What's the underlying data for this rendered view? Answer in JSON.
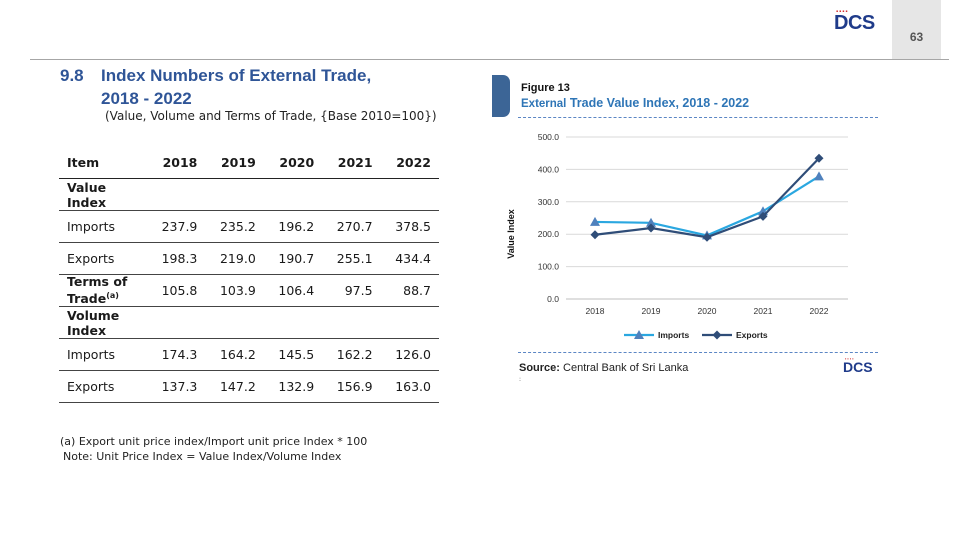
{
  "header": {
    "page_number": "63",
    "logo_text": "DCS",
    "logo_dots": "▪▪▪▪"
  },
  "section": {
    "number": "9.8",
    "title_line1": "Index Numbers of External Trade,",
    "title_line2": "2018 - 2022",
    "subtitle": "(Value, Volume and Terms of Trade, {Base 2010=100})"
  },
  "table": {
    "headers": [
      "Item",
      "2018",
      "2019",
      "2020",
      "2021",
      "2022"
    ],
    "value_group": "Value Index",
    "value_rows": [
      {
        "label": "Imports",
        "values": [
          "237.9",
          "235.2",
          "196.2",
          "270.7",
          "378.5"
        ]
      },
      {
        "label": "Exports",
        "values": [
          "198.3",
          "219.0",
          "190.7",
          "255.1",
          "434.4"
        ]
      }
    ],
    "tot_row": {
      "label": "Terms of Trade",
      "sup": "(a)",
      "values": [
        "105.8",
        "103.9",
        "106.4",
        "97.5",
        "88.7"
      ]
    },
    "volume_group": "Volume Index",
    "volume_rows": [
      {
        "label": "Imports",
        "values": [
          "174.3",
          "164.2",
          "145.5",
          "162.2",
          "126.0"
        ]
      },
      {
        "label": "Exports",
        "values": [
          "137.3",
          "147.2",
          "132.9",
          "156.9",
          "163.0"
        ]
      }
    ]
  },
  "notes": {
    "note_a": "(a)  Export unit price index/Import unit price Index * 100",
    "note_b": "Note: Unit Price Index = Value Index/Volume Index"
  },
  "figure": {
    "label": "Figure 13",
    "title_prefix": "External",
    "title_rest": " Trade Value Index, 2018 - 2022",
    "source_label": "Source:",
    "source_text": " Central Bank of Sri Lanka",
    "source_dot": ":"
  },
  "chart_data": {
    "type": "line",
    "x": [
      "2018",
      "2019",
      "2020",
      "2021",
      "2022"
    ],
    "ylabel": "Value Index",
    "ylim": [
      0,
      500
    ],
    "yticks": [
      "0.0",
      "100.0",
      "200.0",
      "300.0",
      "400.0",
      "500.0"
    ],
    "grid": true,
    "legend": "bottom",
    "series": [
      {
        "name": "Imports",
        "values": [
          237.9,
          235.2,
          196.2,
          270.7,
          378.5
        ],
        "color": "#2aa7e0",
        "marker": "triangle"
      },
      {
        "name": "Exports",
        "values": [
          198.3,
          219.0,
          190.7,
          255.1,
          434.4
        ],
        "color": "#2f4d78",
        "marker": "diamond"
      }
    ]
  }
}
